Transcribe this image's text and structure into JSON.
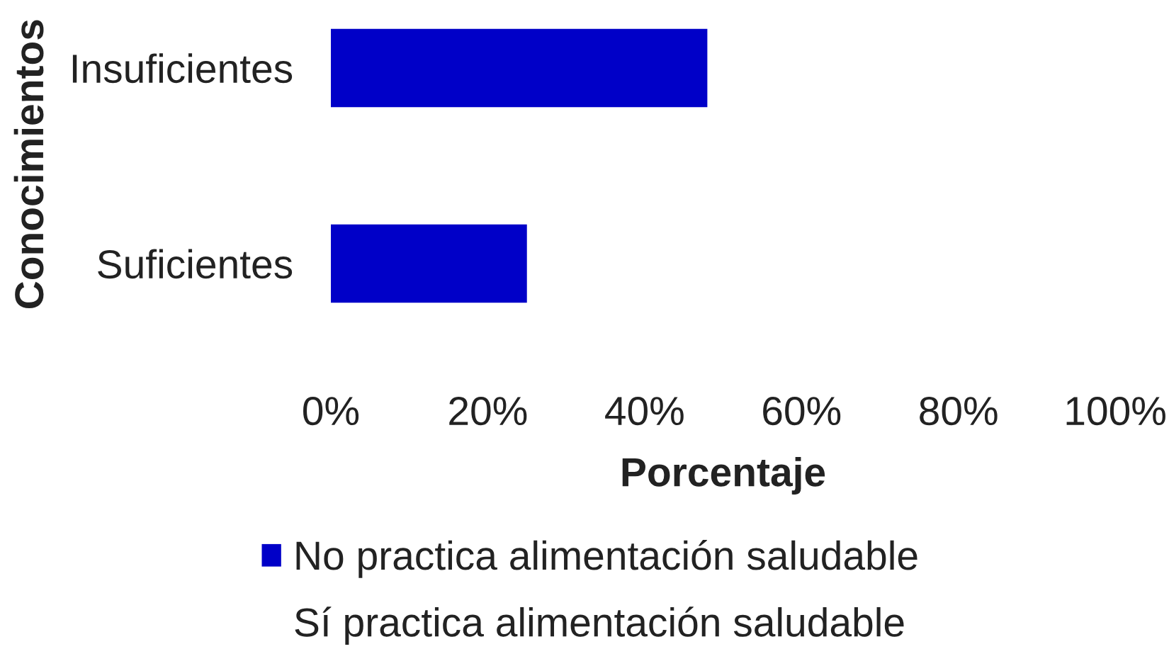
{
  "chart_data": {
    "type": "bar",
    "orientation": "horizontal",
    "categories": [
      "Insuficientes",
      "Suficientes"
    ],
    "series": [
      {
        "name": "No practica alimentación saludable",
        "color": "#0000c8",
        "values": [
          48,
          25
        ]
      },
      {
        "name": "Sí practica alimentación saludable",
        "values": [
          null,
          null
        ]
      }
    ],
    "xlabel": "Porcentaje",
    "ylabel": "Conocimientos",
    "xlim": [
      0,
      100
    ],
    "xticks": [
      {
        "value": 0,
        "label": "0%"
      },
      {
        "value": 20,
        "label": "20%"
      },
      {
        "value": 40,
        "label": "40%"
      },
      {
        "value": 60,
        "label": "60%"
      },
      {
        "value": 80,
        "label": "80%"
      },
      {
        "value": 100,
        "label": "100%"
      }
    ],
    "grid": false,
    "legend": "bottom"
  }
}
